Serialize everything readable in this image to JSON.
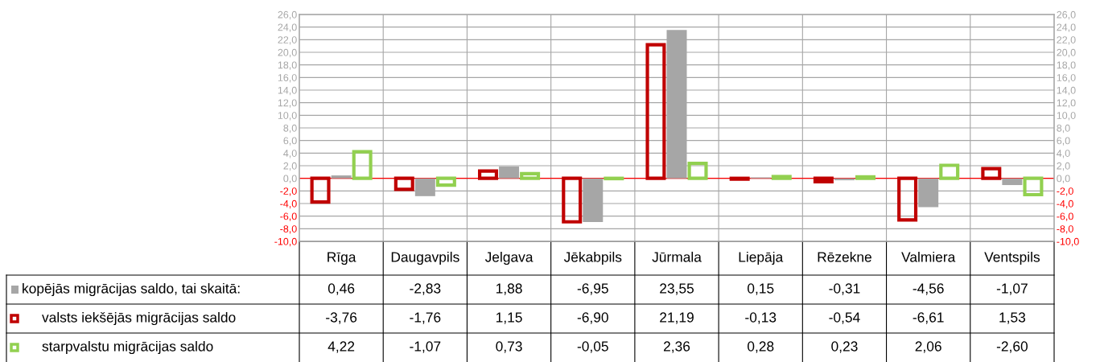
{
  "chart_data": {
    "type": "bar",
    "categories": [
      "Rīga",
      "Daugavpils",
      "Jelgava",
      "Jēkabpils",
      "Jūrmala",
      "Liepāja",
      "Rēzekne",
      "Valmiera",
      "Ventspils"
    ],
    "series": [
      {
        "name": "kopējās migrācijas saldo, tai skaitā:",
        "color": "#a6a6a6",
        "values": [
          0.46,
          -2.83,
          1.88,
          -6.95,
          23.55,
          0.15,
          -0.31,
          -4.56,
          -1.07
        ],
        "value_labels": [
          "0,46",
          "-2,83",
          "1,88",
          "-6,95",
          "23,55",
          "0,15",
          "-0,31",
          "-4,56",
          "-1,07"
        ]
      },
      {
        "name": "valsts iekšējās migrācijas saldo",
        "color": "#c00000",
        "values": [
          -3.76,
          -1.76,
          1.15,
          -6.9,
          21.19,
          -0.13,
          -0.54,
          -6.61,
          1.53
        ],
        "value_labels": [
          "-3,76",
          "-1,76",
          "1,15",
          "-6,90",
          "21,19",
          "-0,13",
          "-0,54",
          "-6,61",
          "1,53"
        ]
      },
      {
        "name": "starpvalstu migrācijas saldo",
        "color": "#92d050",
        "values": [
          4.22,
          -1.07,
          0.73,
          -0.05,
          2.36,
          0.28,
          0.23,
          2.06,
          -2.6
        ],
        "value_labels": [
          "4,22",
          "-1,07",
          "0,73",
          "-0,05",
          "2,36",
          "0,28",
          "0,23",
          "2,06",
          "-2,60"
        ]
      }
    ],
    "ylim": [
      -10,
      26
    ],
    "yticks": [
      {
        "value": -10,
        "label": "-10,0"
      },
      {
        "value": -8,
        "label": "-8,0"
      },
      {
        "value": -6,
        "label": "-6,0"
      },
      {
        "value": -4,
        "label": "-4,0"
      },
      {
        "value": -2,
        "label": "-2,0"
      },
      {
        "value": 0,
        "label": "0,0"
      },
      {
        "value": 2,
        "label": "2,0"
      },
      {
        "value": 4,
        "label": "4,0"
      },
      {
        "value": 6,
        "label": "6,0"
      },
      {
        "value": 8,
        "label": "8,0"
      },
      {
        "value": 10,
        "label": "10,0"
      },
      {
        "value": 12,
        "label": "12,0"
      },
      {
        "value": 14,
        "label": "14,0"
      },
      {
        "value": 16,
        "label": "16,0"
      },
      {
        "value": 18,
        "label": "18,0"
      },
      {
        "value": 20,
        "label": "20,0"
      },
      {
        "value": 22,
        "label": "22,0"
      },
      {
        "value": 24,
        "label": "24,0"
      },
      {
        "value": 26,
        "label": "26,0"
      }
    ],
    "y2lim": [
      -10,
      26
    ],
    "y2ticks": [
      {
        "value": -10,
        "label": "-10,0"
      },
      {
        "value": -8,
        "label": "-8,0"
      },
      {
        "value": -6,
        "label": "-6,0"
      },
      {
        "value": -4,
        "label": "-4,0"
      },
      {
        "value": -2,
        "label": "-2,0"
      },
      {
        "value": 0,
        "label": "0,0"
      },
      {
        "value": 2,
        "label": "2,0"
      },
      {
        "value": 4,
        "label": "4,0"
      },
      {
        "value": 6,
        "label": "6,0"
      },
      {
        "value": 8,
        "label": "8,0"
      },
      {
        "value": 10,
        "label": "10,0"
      },
      {
        "value": 12,
        "label": "12,0"
      },
      {
        "value": 14,
        "label": "14,0"
      },
      {
        "value": 16,
        "label": "16,0"
      },
      {
        "value": 18,
        "label": "18,0"
      },
      {
        "value": 20,
        "label": "20,0"
      },
      {
        "value": 22,
        "label": "22,0"
      },
      {
        "value": 24,
        "label": "24,0"
      },
      {
        "value": 26,
        "label": "26,0"
      }
    ],
    "ref_lines": [
      {
        "axis": "y",
        "value": 0,
        "color": "#ff0000"
      }
    ],
    "grid": true,
    "legend": "bottom left"
  }
}
